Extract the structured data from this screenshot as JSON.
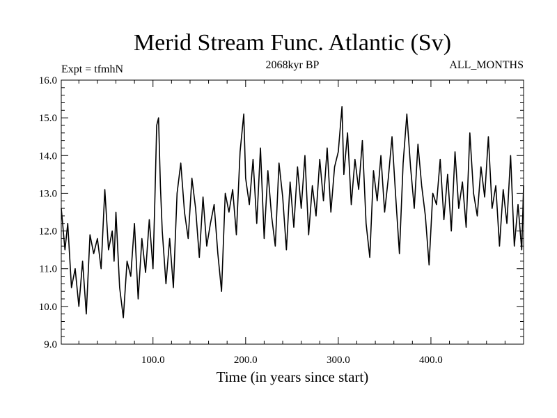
{
  "chart_data": {
    "type": "line",
    "title": "Merid Stream Func. Atlantic (Sv)",
    "subtitle_left": "Expt = tfmhN",
    "subtitle_center": "2068kyr BP",
    "subtitle_right": "ALL_MONTHS",
    "xlabel": "Time (in years since start)",
    "ylabel": "",
    "xlim": [
      1,
      500
    ],
    "ylim": [
      9.0,
      16.0
    ],
    "x_ticks": [
      100,
      200,
      300,
      400
    ],
    "x_tick_labels": [
      "100.0",
      "200.0",
      "300.0",
      "400.0"
    ],
    "y_ticks": [
      9,
      10,
      11,
      12,
      13,
      14,
      15,
      16
    ],
    "y_tick_labels": [
      "9.0",
      "10.0",
      "11.0",
      "12.0",
      "13.0",
      "14.0",
      "15.0",
      "16.0"
    ],
    "series": [
      {
        "name": "Merid Stream Func. Atlantic",
        "color": "#000000",
        "x": [
          1,
          5,
          8,
          12,
          16,
          20,
          24,
          28,
          32,
          36,
          40,
          44,
          48,
          52,
          56,
          58,
          60,
          64,
          68,
          72,
          76,
          80,
          84,
          88,
          92,
          96,
          100,
          102,
          104,
          106,
          108,
          110,
          114,
          118,
          122,
          126,
          130,
          134,
          138,
          142,
          146,
          150,
          154,
          158,
          162,
          166,
          170,
          174,
          178,
          182,
          186,
          190,
          194,
          198,
          200,
          204,
          208,
          212,
          216,
          220,
          224,
          228,
          232,
          236,
          240,
          244,
          248,
          252,
          256,
          260,
          264,
          268,
          272,
          276,
          280,
          284,
          288,
          292,
          296,
          300,
          304,
          306,
          310,
          314,
          318,
          322,
          326,
          330,
          334,
          338,
          342,
          346,
          350,
          354,
          358,
          362,
          366,
          370,
          374,
          378,
          382,
          386,
          390,
          394,
          398,
          402,
          406,
          410,
          414,
          418,
          422,
          426,
          430,
          434,
          438,
          442,
          446,
          450,
          454,
          458,
          462,
          466,
          470,
          474,
          478,
          482,
          486,
          490,
          494,
          498,
          500
        ],
        "values": [
          12.6,
          11.5,
          12.2,
          10.5,
          11.0,
          10.0,
          11.2,
          9.8,
          11.9,
          11.4,
          11.8,
          11.0,
          13.1,
          11.5,
          12.0,
          11.2,
          12.5,
          10.5,
          9.7,
          11.2,
          10.8,
          12.2,
          10.2,
          11.8,
          10.9,
          12.3,
          11.0,
          12.8,
          14.8,
          15.0,
          13.2,
          12.0,
          10.6,
          11.8,
          10.5,
          13.0,
          13.8,
          12.5,
          11.8,
          13.4,
          12.6,
          11.3,
          12.9,
          11.6,
          12.2,
          12.7,
          11.4,
          10.4,
          13.0,
          12.5,
          13.1,
          11.9,
          14.1,
          15.1,
          13.4,
          12.7,
          13.9,
          12.2,
          14.2,
          11.8,
          13.6,
          12.4,
          11.6,
          13.8,
          12.9,
          11.5,
          13.3,
          12.1,
          13.7,
          12.6,
          14.0,
          11.9,
          13.2,
          12.4,
          13.9,
          12.8,
          14.2,
          12.5,
          13.7,
          14.1,
          15.3,
          13.5,
          14.6,
          12.7,
          13.9,
          13.1,
          14.4,
          12.2,
          11.3,
          13.6,
          12.8,
          14.0,
          12.5,
          13.4,
          14.5,
          12.9,
          11.4,
          13.8,
          15.1,
          13.7,
          12.6,
          14.3,
          13.2,
          12.4,
          11.1,
          13.0,
          12.7,
          13.9,
          12.3,
          13.5,
          12.0,
          14.1,
          12.6,
          13.3,
          12.1,
          14.6,
          13.0,
          12.4,
          13.7,
          12.9,
          14.5,
          12.6,
          13.2,
          11.6,
          13.1,
          12.2,
          14.0,
          11.6,
          12.7,
          11.5,
          13.2
        ]
      }
    ]
  }
}
